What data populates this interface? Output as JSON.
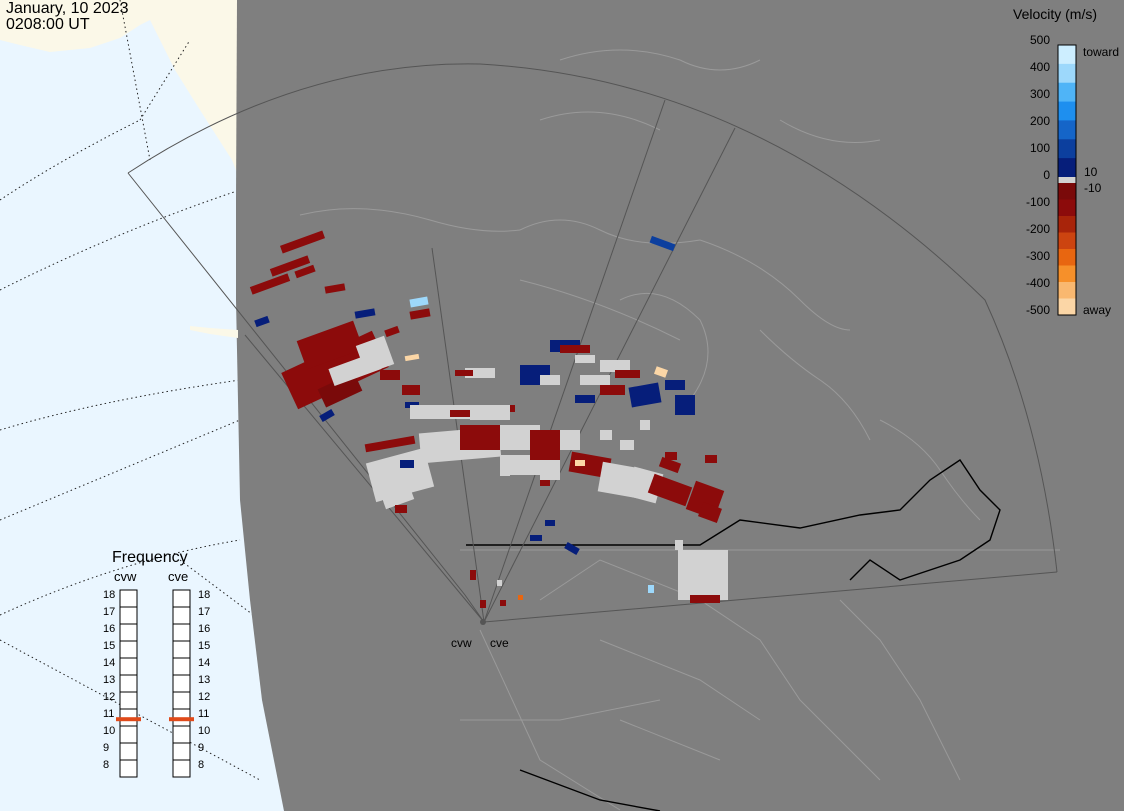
{
  "header": {
    "date": "January, 10 2023",
    "time": "0208:00 UT"
  },
  "colorbar": {
    "title": "Velocity (m/s)",
    "ticks": [
      "500",
      "400",
      "300",
      "200",
      "100",
      "10",
      "0",
      "-10",
      "-100",
      "-200",
      "-300",
      "-400",
      "-500"
    ],
    "toward_label": "toward",
    "away_label": "away",
    "colors_positive": [
      "#cdeeff",
      "#9dd8fb",
      "#4fb4f7",
      "#1e8fef",
      "#1565c8",
      "#0c3f9e",
      "#061e7a"
    ],
    "colors_negative": [
      "#7a0a0a",
      "#8c0b0b",
      "#a8240a",
      "#cc4410",
      "#e86610",
      "#f6902a",
      "#f9b870",
      "#fbd6a6"
    ],
    "ground_scatter_color": "#d2d2d2"
  },
  "radars": [
    {
      "code": "cvw",
      "label": "cvw"
    },
    {
      "code": "cve",
      "label": "cve"
    }
  ],
  "frequency": {
    "title": "Frequency",
    "ticks": [
      "18",
      "17",
      "16",
      "15",
      "14",
      "13",
      "12",
      "11",
      "10",
      "9",
      "8"
    ],
    "cvw_value": 10.9,
    "cve_value": 10.9
  },
  "map_colors": {
    "ocean": "#eaf6ff",
    "land": "#7f7f7f",
    "ice": "#fbf8e8",
    "fov_line": "#595959",
    "border": "#000000"
  }
}
